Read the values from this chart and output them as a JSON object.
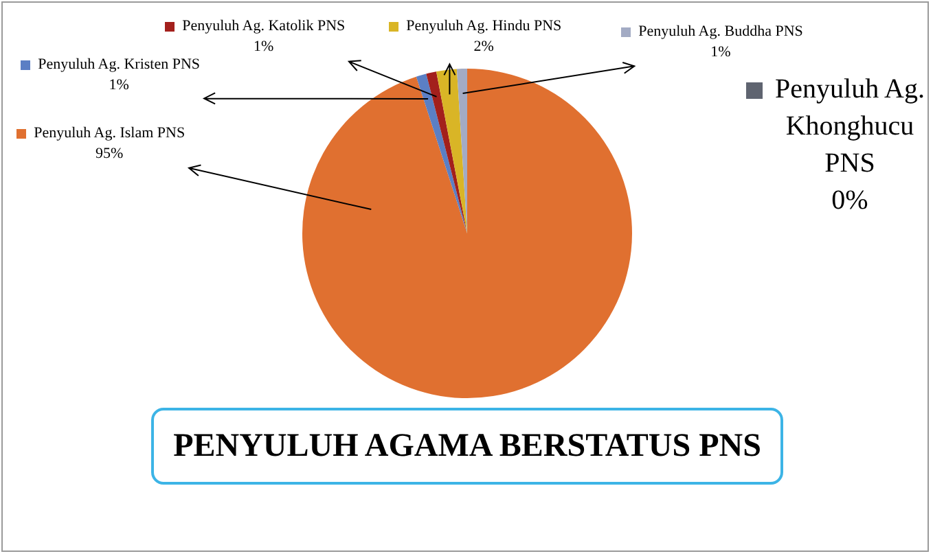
{
  "chart_data": {
    "type": "pie",
    "title": "PENYULUH AGAMA BERSTATUS PNS",
    "categories": [
      "Penyuluh Ag. Islam PNS",
      "Penyuluh Ag. Kristen PNS",
      "Penyuluh Ag. Katolik PNS",
      "Penyuluh Ag. Hindu PNS",
      "Penyuluh Ag. Buddha PNS",
      "Penyuluh Ag. Khonghucu PNS"
    ],
    "values": [
      95,
      1,
      1,
      2,
      1,
      0
    ],
    "value_labels": [
      "95%",
      "1%",
      "1%",
      "2%",
      "1%",
      "0%"
    ],
    "colors": [
      "#e07030",
      "#5b7fc4",
      "#a3201c",
      "#d9b526",
      "#a3abc4",
      "#5f6470"
    ],
    "legend": "top"
  }
}
